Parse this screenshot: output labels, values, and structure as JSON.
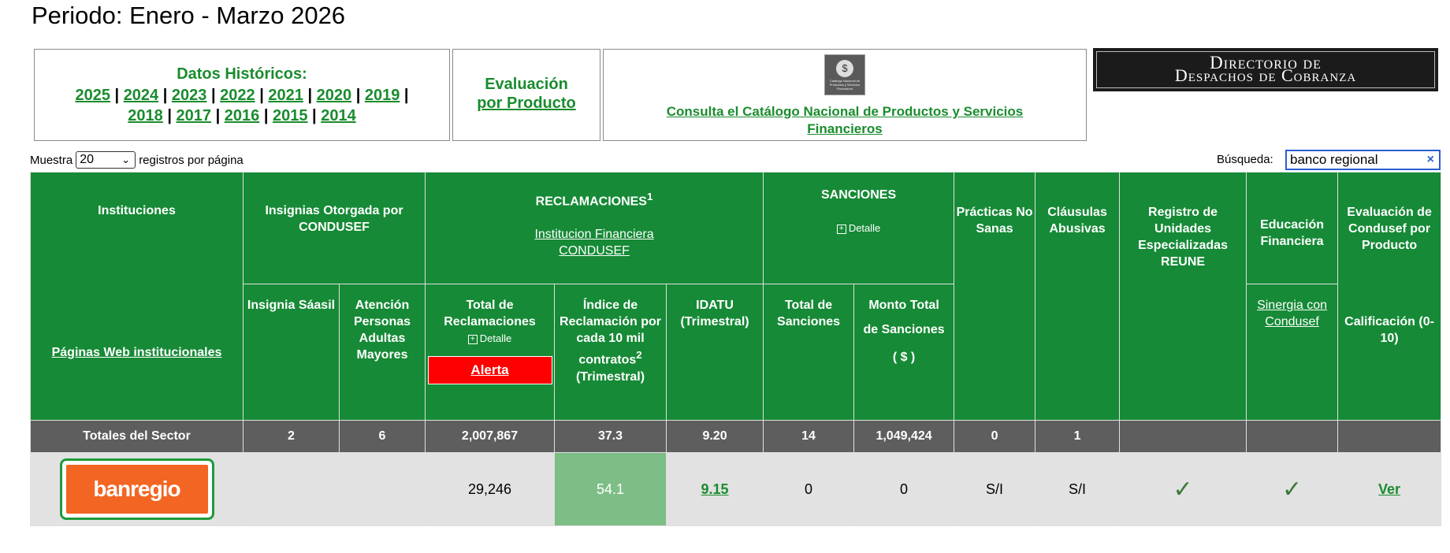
{
  "period_title": "Periodo: Enero - Marzo 2026",
  "historicos": {
    "heading": "Datos Históricos:",
    "years": [
      "2025",
      "2024",
      "2023",
      "2022",
      "2021",
      "2020",
      "2019",
      "2018",
      "2017",
      "2016",
      "2015",
      "2014"
    ],
    "separator": "|"
  },
  "evaluacion_producto": {
    "line1": "Evaluación",
    "line2": "por Producto"
  },
  "catalogo": {
    "logo_text": "Catálogo Nacional de Productos y Servicios Financieros",
    "link": "Consulta el Catálogo Nacional de Productos y Servicios Financieros"
  },
  "directorio": {
    "line1": "Directorio de",
    "line2": "Despachos de Cobranza"
  },
  "pagination": {
    "prefix": "Muestra",
    "selected": "20",
    "suffix": "registros por página"
  },
  "search": {
    "label": "Búsqueda:",
    "value": "banco regional",
    "clear": "×"
  },
  "table": {
    "headers": {
      "instituciones": "Instituciones",
      "paginas_web": "Páginas Web institucionales",
      "insignias": "Insignias Otorgada por CONDUSEF",
      "insignia_saasil": "Insignia Sáasil",
      "atencion_adultos": "Atención Personas Adultas Mayores",
      "reclamaciones": "RECLAMACIONES",
      "reclamaciones_sup": "1",
      "institucion_fin": "Institucion Financiera",
      "condusef": "CONDUSEF",
      "total_reclamaciones": "Total de Reclamaciones",
      "detalle": "Detalle",
      "alerta": "Alerta",
      "indice": "Índice de Reclamación por cada 10 mil contratos",
      "indice_sup": "2",
      "trimestral": "(Trimestral)",
      "idatu": "IDATU",
      "sanciones": "SANCIONES",
      "total_sanciones": "Total de Sanciones",
      "monto_total": "Monto Total",
      "de_sanciones": "de Sanciones",
      "pesos": "( $ )",
      "practicas": "Prácticas No Sanas",
      "clausulas": "Cláusulas Abusivas",
      "reune": "Registro de Unidades Especializadas REUNE",
      "educacion": "Educación Financiera",
      "sinergia": "Sinergia con Condusef",
      "evaluacion": "Evaluación de Condusef por Producto",
      "calificacion": "Calificación (0-10)"
    },
    "totales": {
      "label": "Totales del Sector",
      "saasil": "2",
      "adultos": "6",
      "reclamaciones": "2,007,867",
      "indice": "37.3",
      "idatu": "9.20",
      "sanciones": "14",
      "monto": "1,049,424",
      "practicas": "0",
      "clausulas": "1"
    },
    "rows": [
      {
        "logo_text": "banregio",
        "reclamaciones": "29,246",
        "indice": "54.1",
        "idatu": "9.15",
        "sanciones": "0",
        "monto": "0",
        "practicas": "S/I",
        "clausulas": "S/I",
        "reune": "✓",
        "educacion": "✓",
        "evaluacion": "Ver"
      }
    ]
  }
}
